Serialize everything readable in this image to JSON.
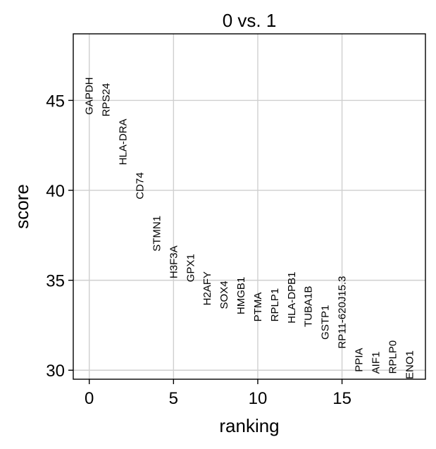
{
  "chart_data": {
    "type": "scatter",
    "title": "0 vs. 1",
    "xlabel": "ranking",
    "ylabel": "score",
    "xlim": [
      -0.95,
      19.95
    ],
    "ylim": [
      29.5,
      48.7
    ],
    "xticks": [
      0,
      5,
      10,
      15
    ],
    "xtick_labels": [
      "0",
      "5",
      "10",
      "15"
    ],
    "yticks": [
      30,
      35,
      40,
      45
    ],
    "ytick_labels": [
      "30",
      "35",
      "40",
      "45"
    ],
    "grid": true,
    "points": [
      {
        "rank": 0,
        "gene": "GAPDH",
        "score": 44.2
      },
      {
        "rank": 1,
        "gene": "RPS24",
        "score": 44.1
      },
      {
        "rank": 2,
        "gene": "HLA-DRA",
        "score": 41.4
      },
      {
        "rank": 3,
        "gene": "CD74",
        "score": 39.5
      },
      {
        "rank": 4,
        "gene": "STMN1",
        "score": 36.6
      },
      {
        "rank": 5,
        "gene": "H3F3A",
        "score": 35.1
      },
      {
        "rank": 6,
        "gene": "GPX1",
        "score": 34.9
      },
      {
        "rank": 7,
        "gene": "H2AFY",
        "score": 33.6
      },
      {
        "rank": 8,
        "gene": "SOX4",
        "score": 33.4
      },
      {
        "rank": 9,
        "gene": "HMGB1",
        "score": 33.1
      },
      {
        "rank": 10,
        "gene": "PTMA",
        "score": 32.7
      },
      {
        "rank": 11,
        "gene": "RPLP1",
        "score": 32.7
      },
      {
        "rank": 12,
        "gene": "HLA-DPB1",
        "score": 32.6
      },
      {
        "rank": 13,
        "gene": "TUBA1B",
        "score": 32.4
      },
      {
        "rank": 14,
        "gene": "GSTP1",
        "score": 31.7
      },
      {
        "rank": 15,
        "gene": "RP11-620J15.3",
        "score": 31.2
      },
      {
        "rank": 16,
        "gene": "PPIA",
        "score": 29.9
      },
      {
        "rank": 17,
        "gene": "AIF1",
        "score": 29.8
      },
      {
        "rank": 18,
        "gene": "RPLP0",
        "score": 29.8
      },
      {
        "rank": 19,
        "gene": "ENO1",
        "score": 29.5
      }
    ]
  }
}
